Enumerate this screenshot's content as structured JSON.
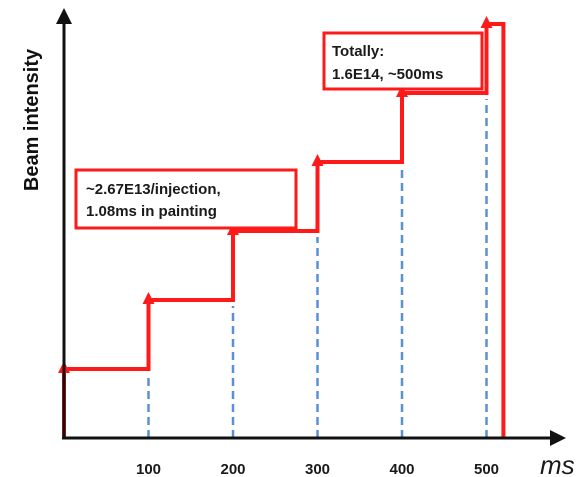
{
  "chart_data": {
    "type": "line",
    "ylabel": "Beam intensity",
    "xunit": "ms",
    "xticks": [
      100,
      200,
      300,
      400,
      500
    ],
    "xlim": [
      0,
      580
    ],
    "ylim": [
      0,
      7.6
    ],
    "series": [
      {
        "shape": "staircase",
        "x": [
          0,
          100,
          200,
          300,
          400,
          500,
          520
        ],
        "y": [
          1,
          2,
          3,
          4,
          5,
          6,
          0
        ]
      }
    ],
    "injection_markers_x": [
      100,
      200,
      300,
      400,
      500
    ],
    "annotations": [
      {
        "lines": [
          "~2.67E13/injection,",
          "1.08ms in painting"
        ]
      },
      {
        "lines": [
          "Totally:",
          "1.6E14, ~500ms"
        ]
      }
    ]
  },
  "colors": {
    "step": "#ff1a1a",
    "guide": "#5b8fd6",
    "axis": "#111111"
  }
}
